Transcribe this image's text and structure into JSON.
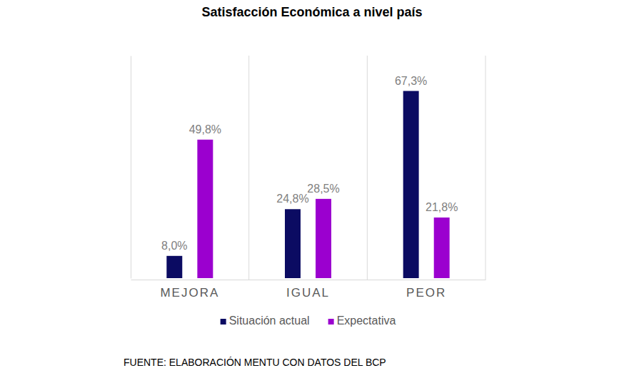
{
  "chart_data": {
    "type": "bar",
    "title": "Satisfacción Económica a nivel país",
    "categories": [
      "MEJORA",
      "IGUAL",
      "PEOR"
    ],
    "series": [
      {
        "name": "Situación actual",
        "color": "#0b0b62",
        "values": [
          8.0,
          24.8,
          67.3
        ],
        "value_labels": [
          "8,0%",
          "24,8%",
          "67,3%"
        ]
      },
      {
        "name": "Expectativa",
        "color": "#9b00cf",
        "values": [
          49.8,
          28.5,
          21.8
        ],
        "value_labels": [
          "49,8%",
          "28,5%",
          "21,8%"
        ]
      }
    ],
    "ylim": [
      0,
      80
    ],
    "yticks": [],
    "tick_labels": "x",
    "grid": false,
    "data_labels": true,
    "legend": "bottom",
    "source": "FUENTE: ELABORACIÓN MENTU CON DATOS DEL BCP"
  }
}
